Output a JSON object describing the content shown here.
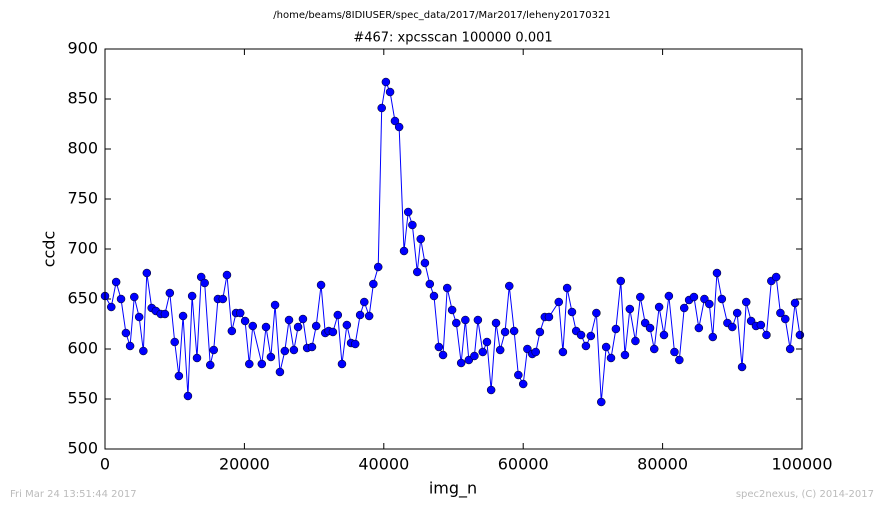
{
  "chart_data": {
    "type": "line",
    "suptitle": "/home/beams/8IDIUSER/spec_data/2017/Mar2017/leheny20170321",
    "title": "#467: xpcsscan 100000 0.001",
    "xlabel": "img_n",
    "ylabel": "ccdc",
    "footer_left": "Fri Mar 24 13:51:44 2017",
    "footer_right": "spec2nexus, (C) 2014-2017",
    "color": "#0000ff",
    "xlim": [
      0,
      100000
    ],
    "ylim": [
      500,
      900
    ],
    "xticks": [
      0,
      20000,
      40000,
      60000,
      80000,
      100000
    ],
    "yticks": [
      500,
      550,
      600,
      650,
      700,
      750,
      800,
      850,
      900
    ],
    "x": [
      0,
      900,
      1600,
      2300,
      3000,
      3600,
      4200,
      4900,
      5500,
      6000,
      6700,
      7300,
      8000,
      8600,
      9300,
      10000,
      10600,
      11200,
      11900,
      12500,
      13200,
      13800,
      14300,
      15100,
      15600,
      16200,
      16900,
      17500,
      18200,
      18800,
      19400,
      20100,
      20700,
      21200,
      22500,
      23100,
      23800,
      24400,
      25100,
      25800,
      26400,
      27100,
      27700,
      28400,
      29000,
      29700,
      30300,
      31000,
      31600,
      32100,
      32700,
      33400,
      34000,
      34700,
      35300,
      35900,
      36600,
      37200,
      37900,
      38500,
      39200,
      39700,
      40300,
      40900,
      41600,
      42200,
      42900,
      43500,
      44100,
      44800,
      45300,
      45900,
      46600,
      47200,
      47900,
      48500,
      49100,
      49800,
      50400,
      51100,
      51700,
      52200,
      53000,
      53500,
      54200,
      54800,
      55400,
      56100,
      56700,
      57400,
      58000,
      58700,
      59300,
      60000,
      60600,
      61300,
      61800,
      62400,
      63100,
      63700,
      65100,
      65700,
      66300,
      67000,
      67600,
      68300,
      69000,
      69700,
      70500,
      71200,
      71900,
      72600,
      73300,
      74000,
      74600,
      75300,
      76100,
      76800,
      77500,
      78200,
      78800,
      79500,
      80200,
      80900,
      81700,
      82400,
      83100,
      83800,
      84500,
      85200,
      86000,
      86700,
      87200,
      87800,
      88500,
      89300,
      90000,
      90700,
      91400,
      92000,
      92700,
      93400,
      94100,
      94900,
      95600,
      96300,
      96900,
      97600,
      98300,
      99000,
      99700
    ],
    "values": [
      653,
      642,
      667,
      650,
      616,
      603,
      652,
      632,
      598,
      676,
      641,
      638,
      635,
      635,
      656,
      607,
      573,
      633,
      553,
      653,
      591,
      672,
      666,
      584,
      599,
      650,
      650,
      674,
      618,
      636,
      636,
      628,
      585,
      623,
      585,
      622,
      592,
      644,
      577,
      598,
      629,
      599,
      622,
      630,
      601,
      602,
      623,
      664,
      616,
      618,
      617,
      634,
      585,
      624,
      606,
      605,
      634,
      647,
      633,
      665,
      682,
      841,
      867,
      857,
      828,
      822,
      698,
      737,
      724,
      677,
      710,
      686,
      665,
      653,
      602,
      594,
      661,
      639,
      626,
      586,
      629,
      589,
      593,
      629,
      597,
      607,
      559,
      626,
      599,
      617,
      663,
      618,
      574,
      565,
      600,
      595,
      597,
      617,
      632,
      632,
      647,
      597,
      661,
      637,
      618,
      614,
      603,
      613,
      636,
      547,
      602,
      591,
      620,
      668,
      594,
      640,
      608,
      652,
      626,
      621,
      600,
      642,
      614,
      653,
      597,
      589,
      641,
      649,
      652,
      621,
      650,
      645,
      612,
      676,
      650,
      626,
      622,
      636,
      582,
      647,
      628,
      623,
      624,
      614,
      668,
      672,
      636,
      630,
      600,
      646,
      614
    ]
  }
}
